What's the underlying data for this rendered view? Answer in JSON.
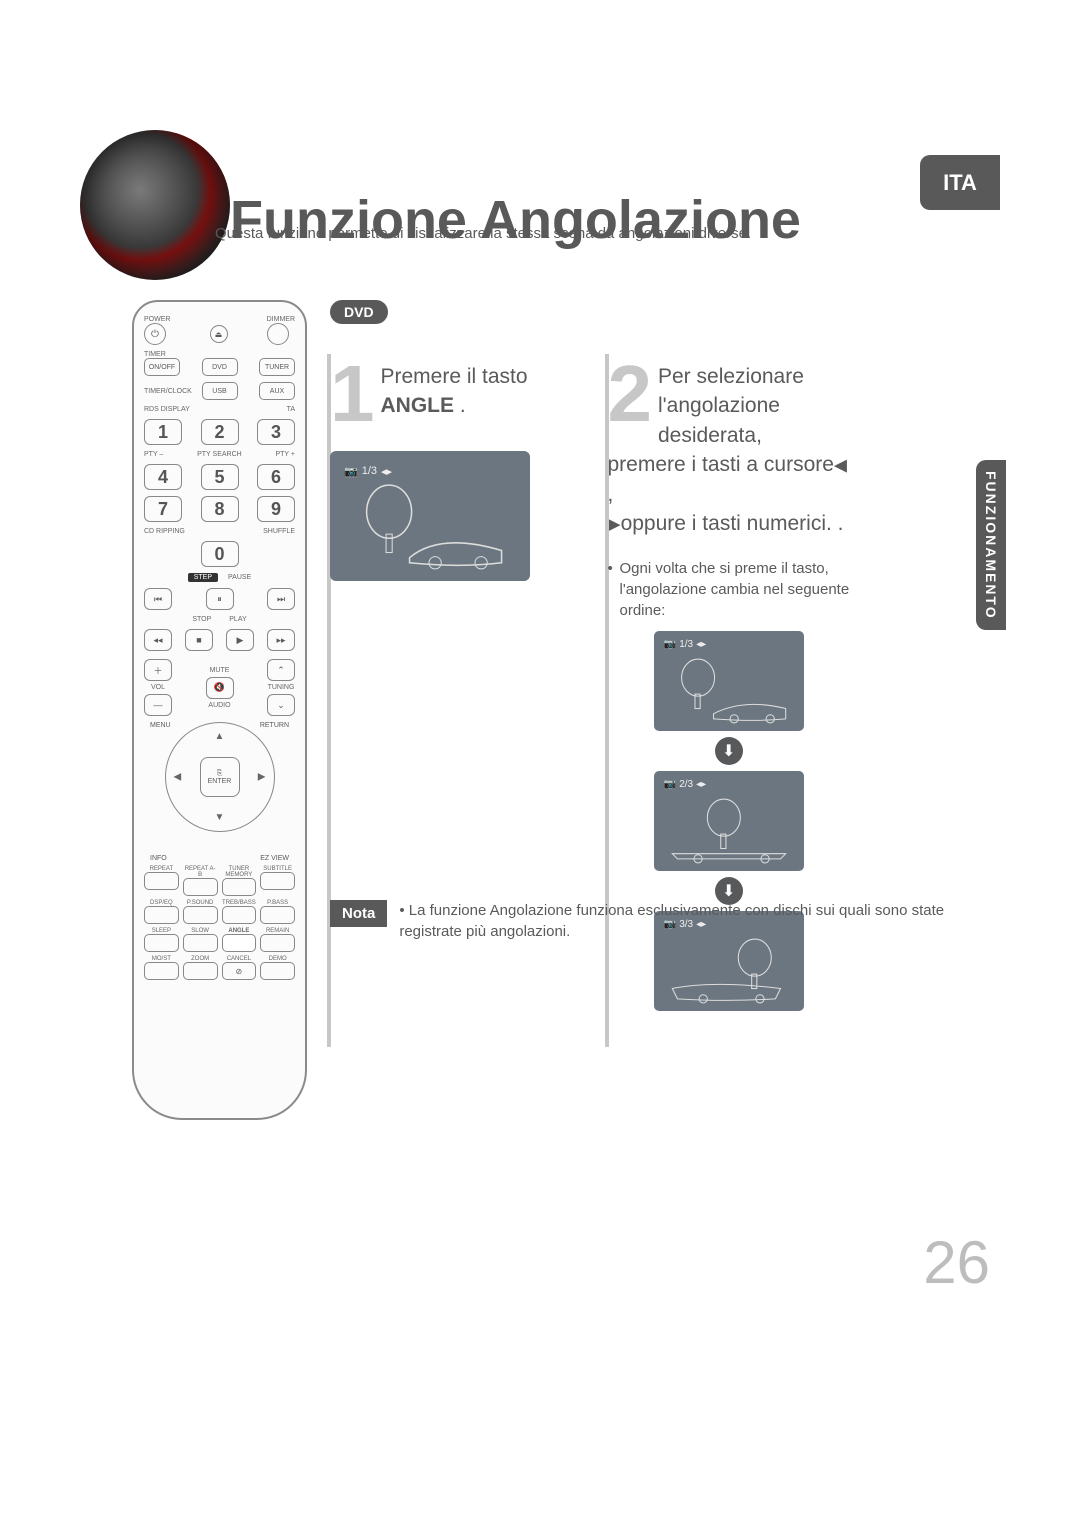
{
  "page": {
    "title": "Funzione Angolazione",
    "subtitle": "Questa funzione permette di visualizzare la stessa scena da angolazioni diverse.",
    "lang_badge": "ITA",
    "side_tab": "FUNZIONAMENTO",
    "page_number": "26",
    "dvd_label": "DVD"
  },
  "step1": {
    "number": "1",
    "line1": "Premere il tasto",
    "bold": "ANGLE",
    "after_bold": " .",
    "osd": {
      "icon": "📷",
      "text": "1/3",
      "arrows": "◂▸"
    }
  },
  "step2": {
    "number": "2",
    "line1": "Per selezionare",
    "line2": "l'angolazione desiderata,",
    "line3_pre": "premere i tasti a cursore",
    "tri_left": "◀",
    "comma": " ,",
    "tri_right": "▶",
    "line4": "oppure i tasti numerici. .",
    "explain1": "Ogni volta che si preme il tasto,",
    "explain2": "l'angolazione cambia nel seguente",
    "explain3": "ordine:",
    "frames": [
      {
        "text": "1/3"
      },
      {
        "text": "2/3"
      },
      {
        "text": "3/3"
      }
    ]
  },
  "note": {
    "label": "Nota",
    "text": "La funzione Angolazione funziona esclusivamente con dischi sui quali sono state registrate più angolazioni."
  },
  "remote": {
    "top": {
      "power": "POWER",
      "dimmer": "DIMMER",
      "eject": "⏏"
    },
    "row2": {
      "timer": "TIMER",
      "onoff": "ON/OFF",
      "dvd": "DVD",
      "tuner": "TUNER",
      "clock": "TIMER/CLOCK",
      "usb": "USB",
      "aux": "AUX"
    },
    "nums_top": {
      "rds": "RDS DISPLAY",
      "ta": "TA"
    },
    "nums": [
      "1",
      "2",
      "3",
      "4",
      "5",
      "6",
      "7",
      "8",
      "9",
      "0"
    ],
    "pty": {
      "minus": "PTY –",
      "search": "PTY SEARCH",
      "plus": "PTY +"
    },
    "ripping_row": {
      "cd": "CD RIPPING",
      "shuffle": "SHUFFLE"
    },
    "transport": {
      "step": "STEP",
      "pause": "PAUSE",
      "prev": "⏮",
      "pausebtn": "⏸",
      "next": "⏭",
      "stop": "STOP",
      "play": "PLAY",
      "rew": "◂◂",
      "stopbtn": "■",
      "playbtn": "▶",
      "ff": "▸▸"
    },
    "vol_block": {
      "mute": "MUTE",
      "vol": "VOL",
      "audio": "AUDIO",
      "tuning": "TUNING",
      "plus": "＋",
      "minus": "—",
      "mute_icon": "🔇",
      "up": "⌃",
      "down": "⌄"
    },
    "dpad": {
      "menu": "MENU",
      "return": "RETURN",
      "info": "INFO",
      "ezview": "EZ VIEW",
      "enter": "ENTER",
      "up": "▲",
      "down": "▼",
      "left": "◀",
      "right": "▶",
      "center_icon": "⎘"
    },
    "grid_labels": [
      "REPEAT",
      "REPEAT A-B",
      "TUNER MEMORY",
      "SUBTITLE",
      "DSP/EQ",
      "P.SOUND",
      "TREB/BASS",
      "P.BASS",
      "SLEEP",
      "SLOW",
      "ANGLE",
      "REMAIN",
      "MO/ST",
      "ZOOM",
      "CANCEL",
      "DEMO"
    ],
    "cancel_icon": "⊘"
  },
  "colors": {
    "heading": "#595959",
    "body_text": "#5a5a5a",
    "badge_bg": "#595959",
    "bignum": "#c7c7c7",
    "tv_bg": "#6b7680",
    "page_num": "#bdbdbd"
  }
}
